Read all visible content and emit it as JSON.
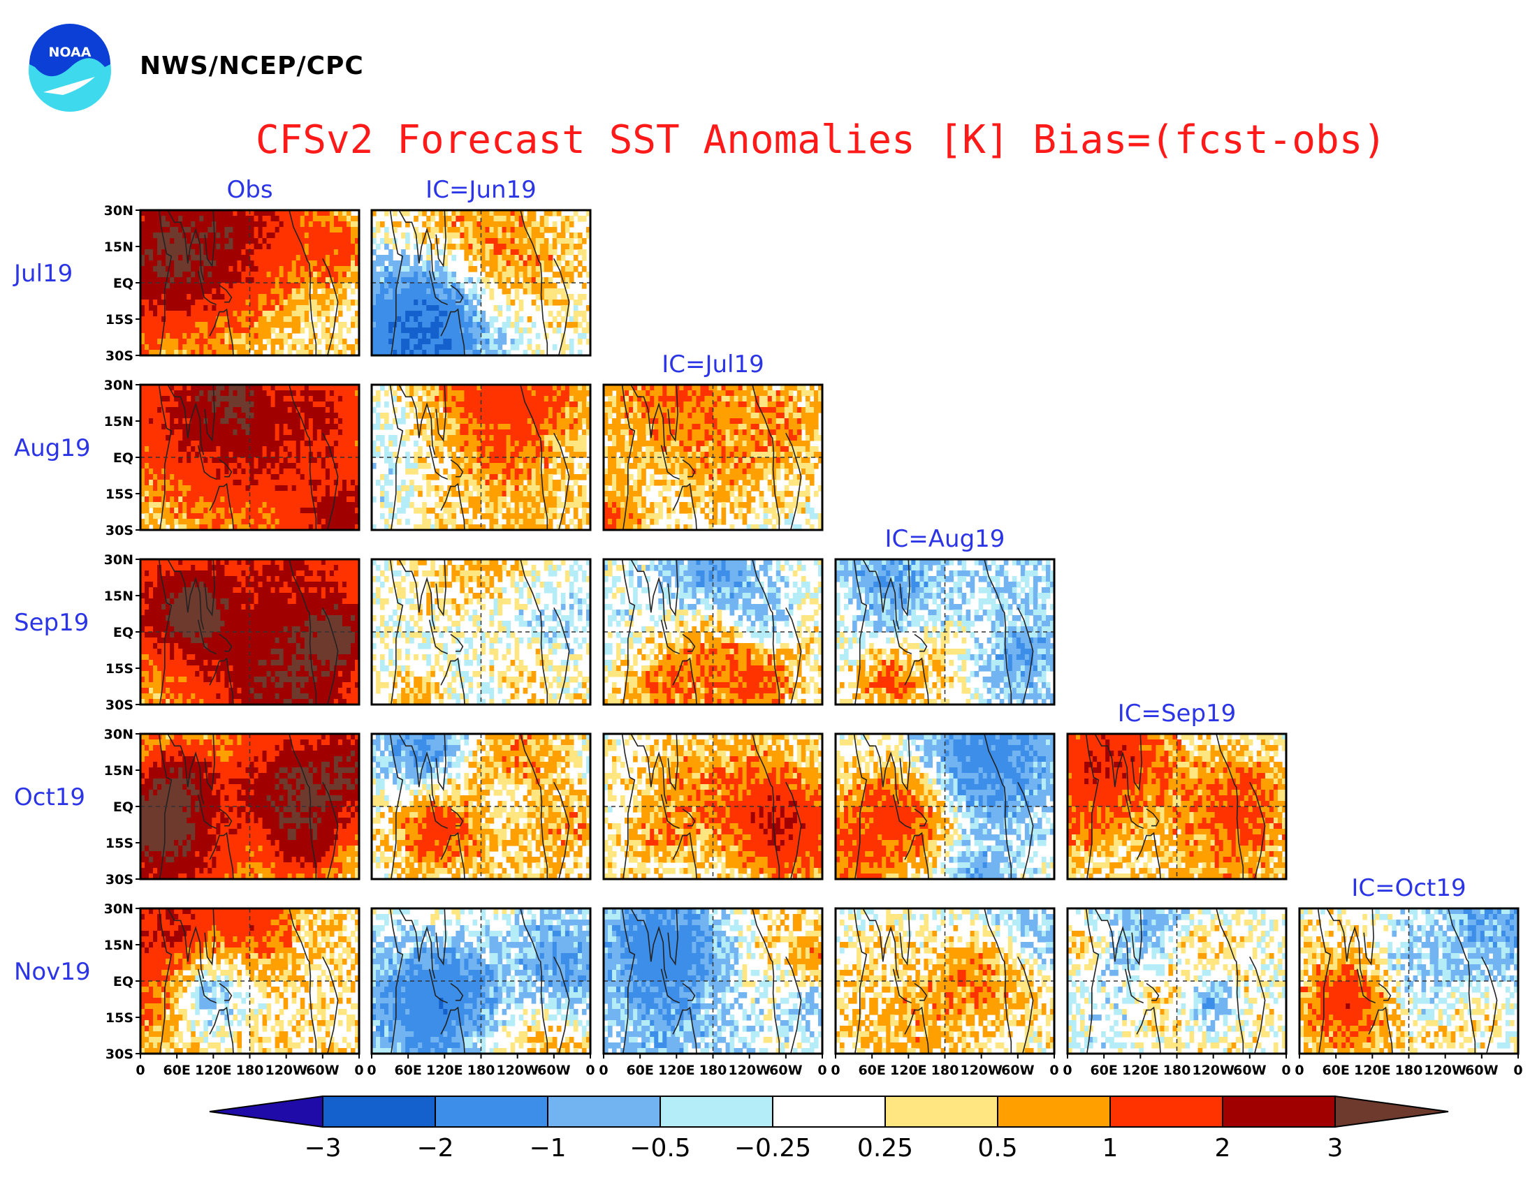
{
  "header": {
    "agency": "NWS/NCEP/CPC",
    "logo_text": "NOAA",
    "title": "CFSv2 Forecast SST Anomalies [K] Bias=(fcst-obs)"
  },
  "chart_data": {
    "type": "heatmap",
    "title": "CFSv2 Forecast SST Anomalies [K] Bias=(fcst-obs)",
    "columns": [
      "Obs",
      "IC=Jun19",
      "IC=Jul19",
      "IC=Aug19",
      "IC=Sep19",
      "IC=Oct19"
    ],
    "rows": [
      "Jul19",
      "Aug19",
      "Sep19",
      "Oct19",
      "Nov19"
    ],
    "panels": [
      {
        "row": "Jul19",
        "column": "Obs"
      },
      {
        "row": "Jul19",
        "column": "IC=Jun19"
      },
      {
        "row": "Aug19",
        "column": "Obs"
      },
      {
        "row": "Aug19",
        "column": "IC=Jun19"
      },
      {
        "row": "Aug19",
        "column": "IC=Jul19"
      },
      {
        "row": "Sep19",
        "column": "Obs"
      },
      {
        "row": "Sep19",
        "column": "IC=Jun19"
      },
      {
        "row": "Sep19",
        "column": "IC=Jul19"
      },
      {
        "row": "Sep19",
        "column": "IC=Aug19"
      },
      {
        "row": "Oct19",
        "column": "Obs"
      },
      {
        "row": "Oct19",
        "column": "IC=Jun19"
      },
      {
        "row": "Oct19",
        "column": "IC=Jul19"
      },
      {
        "row": "Oct19",
        "column": "IC=Aug19"
      },
      {
        "row": "Oct19",
        "column": "IC=Sep19"
      },
      {
        "row": "Nov19",
        "column": "Obs"
      },
      {
        "row": "Nov19",
        "column": "IC=Jun19"
      },
      {
        "row": "Nov19",
        "column": "IC=Jul19"
      },
      {
        "row": "Nov19",
        "column": "IC=Aug19"
      },
      {
        "row": "Nov19",
        "column": "IC=Sep19"
      },
      {
        "row": "Nov19",
        "column": "IC=Oct19"
      }
    ],
    "y_ticks": [
      "30N",
      "15N",
      "EQ",
      "15S",
      "30S"
    ],
    "x_ticks": [
      "0",
      "60E",
      "120E",
      "180",
      "120W",
      "60W",
      "0"
    ],
    "xlim": [
      0,
      360
    ],
    "ylim": [
      -30,
      30
    ],
    "grid": "dashed lines at EQ and 180",
    "colorbar": {
      "labels": [
        "-3",
        "-2",
        "-1",
        "-0.5",
        "-0.25",
        "0.25",
        "0.5",
        "1",
        "2",
        "3"
      ],
      "colors": [
        "#1e0ba8",
        "#1460cc",
        "#3c8ee8",
        "#72b4f2",
        "#b4ecf8",
        "#ffffff",
        "#ffe680",
        "#ffa000",
        "#ff3300",
        "#a00000",
        "#6e3a2e"
      ]
    }
  }
}
